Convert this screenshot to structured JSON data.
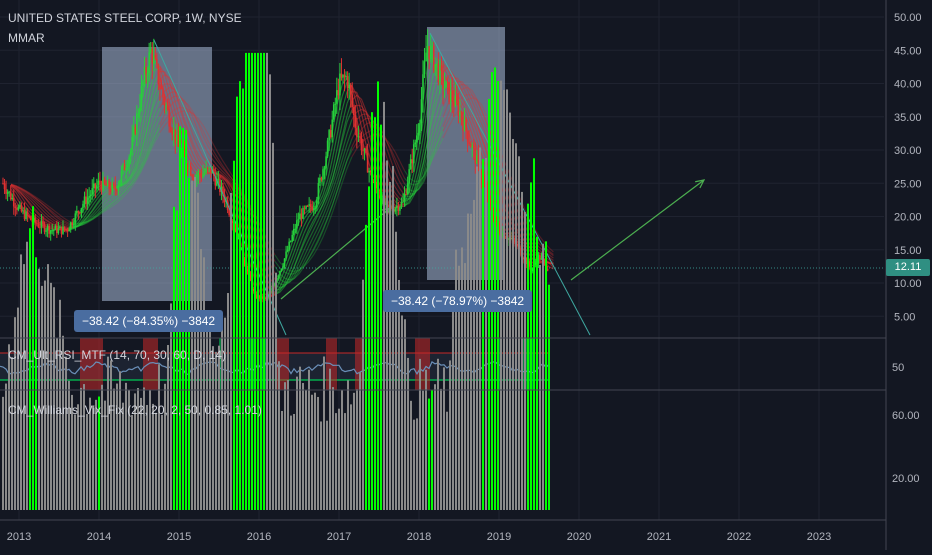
{
  "header": {
    "title": "UNITED STATES STEEL CORP, 1W, NYSE",
    "overlay": "MMAR"
  },
  "last_price": "12.11",
  "measurements": [
    {
      "label": "−38.42 (−84.35%) −3842"
    },
    {
      "label": "−38.42 (−78.97%) −3842"
    }
  ],
  "indicators": {
    "rsi": {
      "label": "CM_Ult_RSI_MTF (14, 70, 30, 60, D, 14)"
    },
    "vix": {
      "label": "CM_Williams_Vix_Fix (22, 20, 2, 50, 0.85, 1.01)"
    }
  },
  "colors": {
    "background": "#131722",
    "up": "#26d03b",
    "down": "#e03131",
    "vix_high": "#00ff00",
    "vix_normal": "#8a8a8a",
    "rsi_line": "#6a8fb8",
    "overbought": "#c62828",
    "oversold": "#00c853",
    "box": "#a9bcd8",
    "arrow": "#4caf50",
    "trendline": "#3fa8a0"
  },
  "chart_data": [
    {
      "type": "line",
      "name": "price",
      "series": [
        {
          "x": [
            2012.8,
            2013.0,
            2013.2,
            2013.4,
            2013.6,
            2013.8,
            2014.0,
            2014.2,
            2014.4,
            2014.55,
            2014.65,
            2014.8,
            2015.0,
            2015.2,
            2015.4,
            2015.6,
            2015.8,
            2015.95,
            2016.1,
            2016.3,
            2016.5,
            2016.7,
            2016.85,
            2017.0,
            2017.1,
            2017.2,
            2017.4,
            2017.6,
            2017.8,
            2018.0,
            2018.1,
            2018.3,
            2018.5,
            2018.7,
            2018.9,
            2019.0,
            2019.2,
            2019.4,
            2019.5,
            2019.62
          ],
          "values": [
            25,
            21,
            19,
            18,
            18,
            22,
            25,
            24,
            30,
            40,
            45,
            38,
            30,
            26,
            27,
            22,
            14,
            8,
            7.5,
            13,
            20,
            22,
            30,
            40,
            41,
            34,
            26,
            21,
            22,
            34,
            46,
            40,
            36,
            29,
            21,
            18,
            16,
            12,
            14,
            12.11
          ]
        }
      ],
      "ylim": [
        2,
        52
      ],
      "ticks_y": [
        "5.00",
        "10.00",
        "15.00",
        "20.00",
        "25.00",
        "30.00",
        "35.00",
        "40.00",
        "45.00",
        "50.00"
      ],
      "ticks_x": [
        "2013",
        "2014",
        "2015",
        "2016",
        "2017",
        "2018",
        "2019",
        "2020",
        "2021",
        "2022",
        "2023"
      ],
      "annotations": [
        "−38.42 (−84.35%) −3842",
        "−38.42 (−78.97%) −3842",
        "12.11"
      ]
    },
    {
      "type": "line",
      "name": "CM_Ult_RSI_MTF",
      "ticks_y": [
        "50"
      ]
    },
    {
      "type": "bar",
      "name": "CM_Williams_Vix_Fix",
      "ticks_y": [
        "20.00",
        "60.00"
      ]
    }
  ]
}
